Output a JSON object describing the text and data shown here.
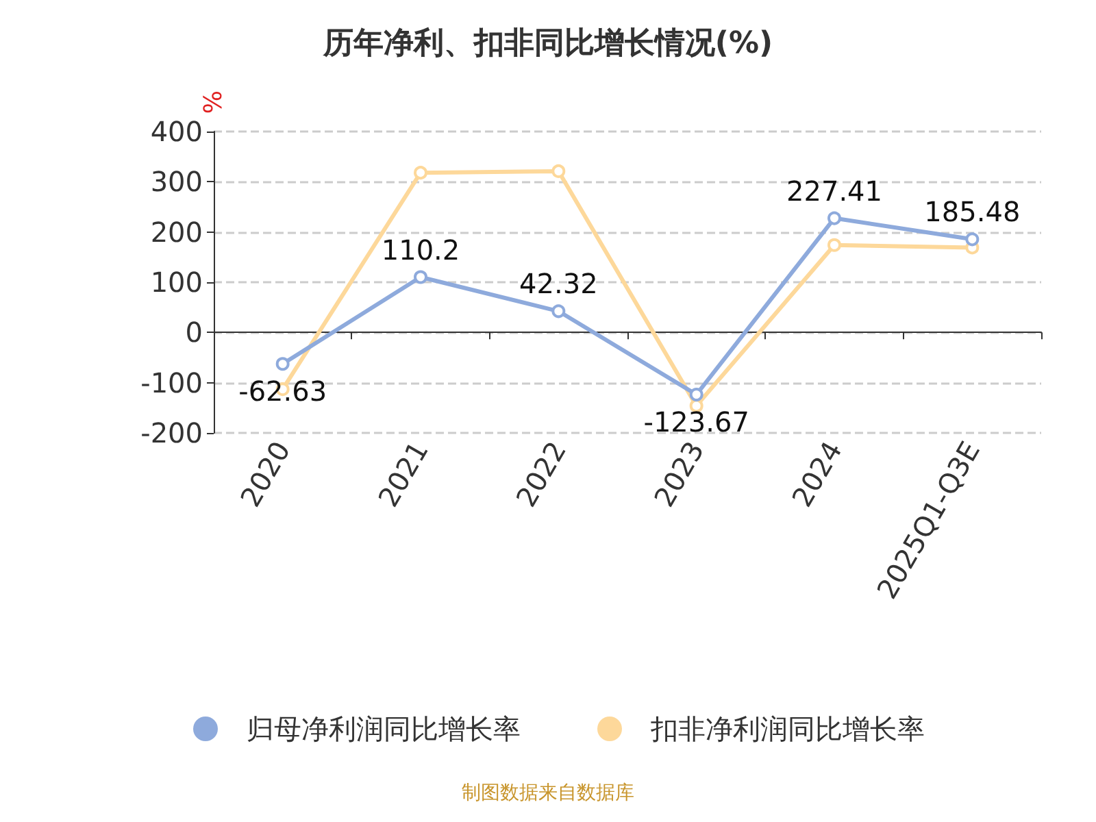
{
  "chart_data": {
    "type": "line",
    "title": "历年净利、扣非同比增长情况(%)",
    "ylabel": "%",
    "categories": [
      "2020",
      "2021",
      "2022",
      "2023",
      "2024",
      "2025Q1-Q3E"
    ],
    "series": [
      {
        "name": "归母净利润同比增长率",
        "color": "#8eaadc",
        "values": [
          -62.63,
          110.2,
          42.32,
          -123.67,
          227.41,
          185.48
        ],
        "value_labels": [
          "-62.63",
          "110.2",
          "42.32",
          "-123.67",
          "227.41",
          "185.48"
        ]
      },
      {
        "name": "扣非净利润同比增长率",
        "color": "#fdd89a",
        "values": [
          -113,
          318,
          321,
          -146,
          174,
          169
        ]
      }
    ],
    "ylim": [
      -200,
      400
    ],
    "yticks": [
      -200,
      -100,
      0,
      100,
      200,
      300,
      400
    ],
    "grid": "y",
    "legend": "bottom",
    "marker": "circle",
    "line_style": "solid",
    "annotations": [
      "制图数据来自数据库"
    ]
  }
}
